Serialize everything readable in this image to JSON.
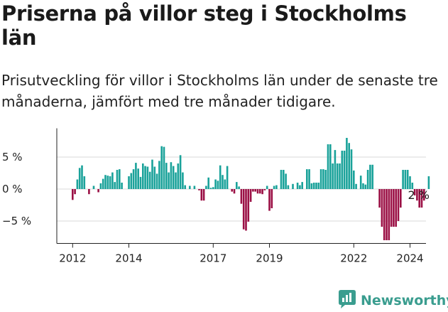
{
  "title": "Priserna på villor steg i Stockholms län",
  "subtitle": "Prisutveckling för villor i Stockholms län under de senaste tre månaderna, jämfört med tre månader tidigare.",
  "brand": "Newsworthy",
  "colors": {
    "positive": "#1aa29a",
    "negative": "#9b1045",
    "grid": "#d9d9d9",
    "axis": "#222222",
    "brand": "#3a9d8f"
  },
  "icons": {
    "brand_logo": "chat-bubble-bar-chart-icon"
  },
  "chart_data": {
    "type": "bar",
    "y_unit": "%",
    "ylim": [
      -8.5,
      9.5
    ],
    "yticks": [
      5,
      0,
      -5
    ],
    "ytick_labels": [
      "5 %",
      "0 %",
      "−5 %"
    ],
    "xticks": [
      {
        "label": "2012",
        "index": 0
      },
      {
        "label": "2014",
        "index": 24
      },
      {
        "label": "2017",
        "index": 60
      },
      {
        "label": "2019",
        "index": 84
      },
      {
        "label": "2022",
        "index": 120
      },
      {
        "label": "2024",
        "index": 144
      }
    ],
    "grid": true,
    "annotation": {
      "text": "2 %",
      "index": 148
    },
    "start": "2012-01",
    "values": [
      -1.7,
      -0.8,
      1.5,
      3.3,
      3.7,
      2.0,
      0.0,
      -0.8,
      0.0,
      0.5,
      0.0,
      -0.5,
      0.9,
      1.6,
      2.2,
      2.1,
      2.0,
      2.6,
      1.1,
      3.0,
      3.1,
      1.0,
      0.0,
      0.0,
      2.0,
      2.5,
      3.1,
      4.1,
      3.2,
      1.9,
      4.0,
      3.6,
      3.5,
      2.7,
      4.6,
      3.5,
      2.4,
      4.4,
      6.7,
      6.6,
      4.1,
      2.6,
      4.2,
      3.6,
      2.6,
      4.0,
      5.3,
      2.6,
      0.6,
      0.0,
      0.5,
      0.0,
      0.5,
      0.0,
      -0.2,
      -1.8,
      -1.8,
      0.5,
      1.8,
      0.2,
      0.3,
      1.5,
      1.3,
      3.7,
      2.2,
      1.5,
      3.6,
      0.0,
      -0.4,
      -0.7,
      1.1,
      0.4,
      -2.3,
      -6.3,
      -6.5,
      -5.1,
      -2.0,
      -0.4,
      -0.4,
      -0.7,
      -0.7,
      -0.8,
      -0.2,
      0.5,
      -3.4,
      -3.0,
      0.5,
      0.6,
      0.0,
      3.0,
      3.0,
      2.4,
      0.6,
      0.0,
      0.8,
      0.0,
      1.0,
      0.6,
      1.1,
      0.0,
      3.1,
      3.1,
      0.9,
      1.0,
      1.0,
      1.0,
      3.1,
      3.1,
      3.0,
      7.0,
      7.0,
      4.0,
      6.1,
      4.0,
      4.0,
      6.0,
      6.0,
      8.0,
      7.2,
      6.2,
      2.9,
      0.8,
      0.0,
      2.1,
      0.9,
      0.7,
      3.0,
      3.8,
      3.8,
      0.0,
      0.0,
      -2.9,
      -5.9,
      -8.0,
      -8.0,
      -8.0,
      -5.9,
      -5.9,
      -5.9,
      -5.0,
      -2.9,
      3.0,
      3.0,
      3.0,
      2.0,
      1.0,
      -1.0,
      -1.8,
      -2.9,
      -2.9,
      -1.8,
      0.0,
      2.0
    ]
  }
}
